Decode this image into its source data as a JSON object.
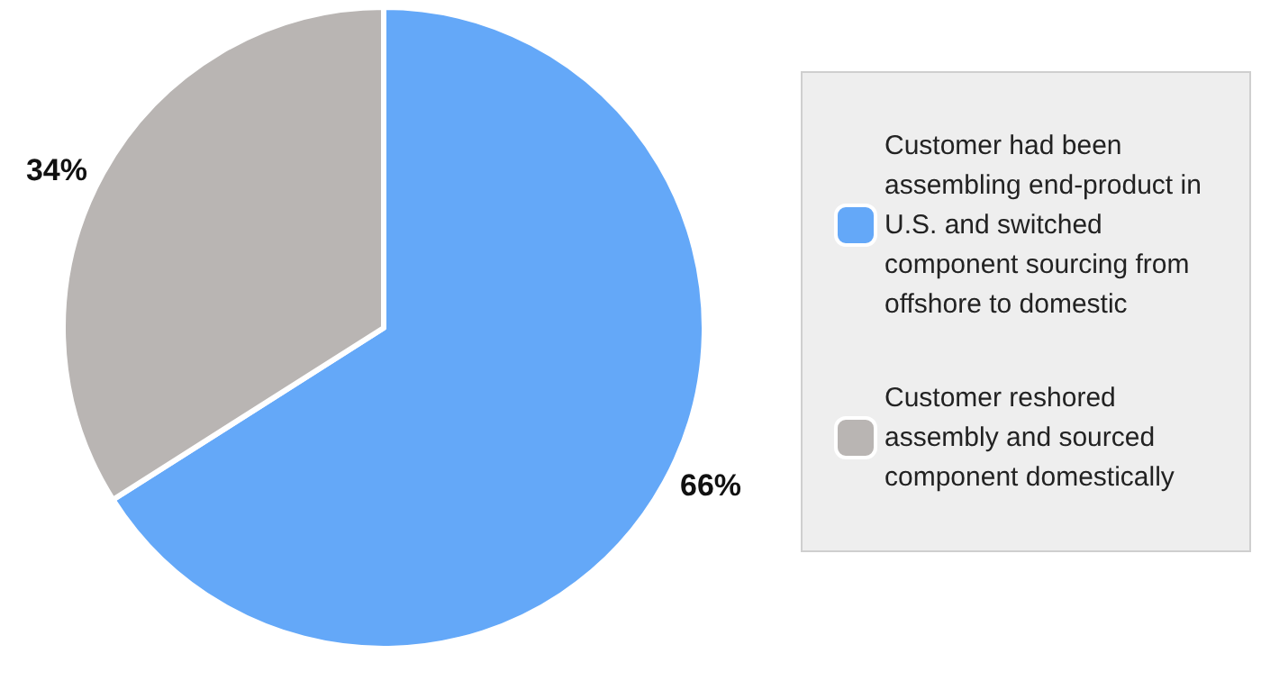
{
  "chart_data": {
    "type": "pie",
    "categories": [
      "Customer had been assembling end-product in U.S. and switched component sourcing from offshore to domestic",
      "Customer reshored assembly and sourced component domestically"
    ],
    "values": [
      66,
      34
    ],
    "colors": [
      "#64a8f8",
      "#b9b5b3"
    ],
    "value_labels": [
      "66%",
      "34%"
    ],
    "legend": "right"
  }
}
